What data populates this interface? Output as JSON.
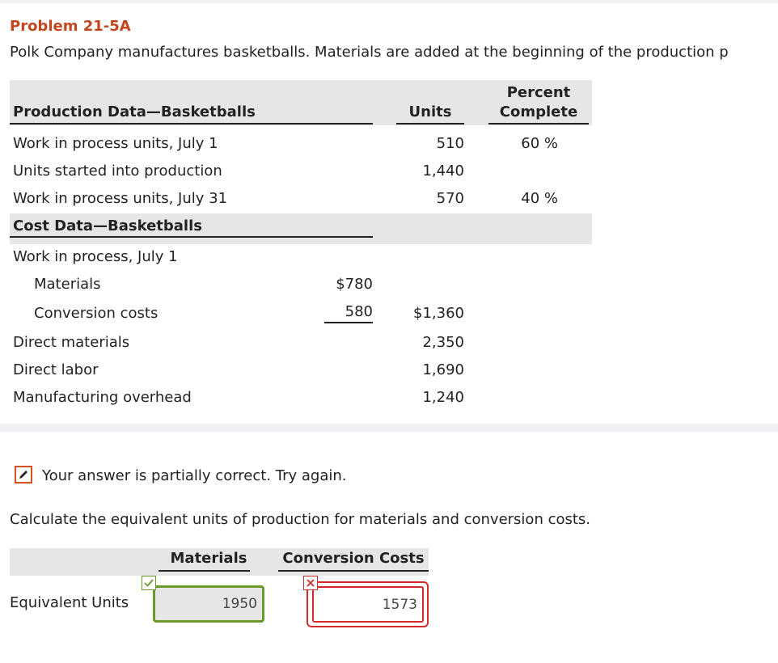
{
  "problem": {
    "title": "Problem 21-5A",
    "text": "Polk Company manufactures basketballs. Materials are added at the beginning of the production p"
  },
  "production": {
    "header": "Production Data—Basketballs",
    "units_header": "Units",
    "percent_header_1": "Percent",
    "percent_header_2": "Complete",
    "rows": [
      {
        "label": "Work in process units, July 1",
        "units": "510",
        "percent": "60 %"
      },
      {
        "label": "Units started into production",
        "units": "1,440",
        "percent": ""
      },
      {
        "label": "Work in process units, July 31",
        "units": "570",
        "percent": "40 %"
      }
    ]
  },
  "cost": {
    "header": "Cost Data—Basketballs",
    "wip_label": "Work in process, July 1",
    "materials_label": "Materials",
    "materials_value": "$780",
    "conversion_label": "Conversion costs",
    "conversion_value": "580",
    "wip_total": "$1,360",
    "rows": [
      {
        "label": "Direct materials",
        "value": "2,350"
      },
      {
        "label": "Direct labor",
        "value": "1,690"
      },
      {
        "label": "Manufacturing overhead",
        "value": "1,240"
      }
    ]
  },
  "feedback": {
    "message": "Your answer is partially correct.  Try again.",
    "colors": {
      "partial": "#d2511c",
      "correct": "#6b9a2a",
      "incorrect": "#d52a2a"
    }
  },
  "question": {
    "text": "Calculate the equivalent units of production for materials and conversion costs.",
    "materials_header": "Materials",
    "conversion_header": "Conversion Costs",
    "row_label": "Equivalent Units",
    "materials_value": "1950",
    "conversion_value": "1573"
  }
}
